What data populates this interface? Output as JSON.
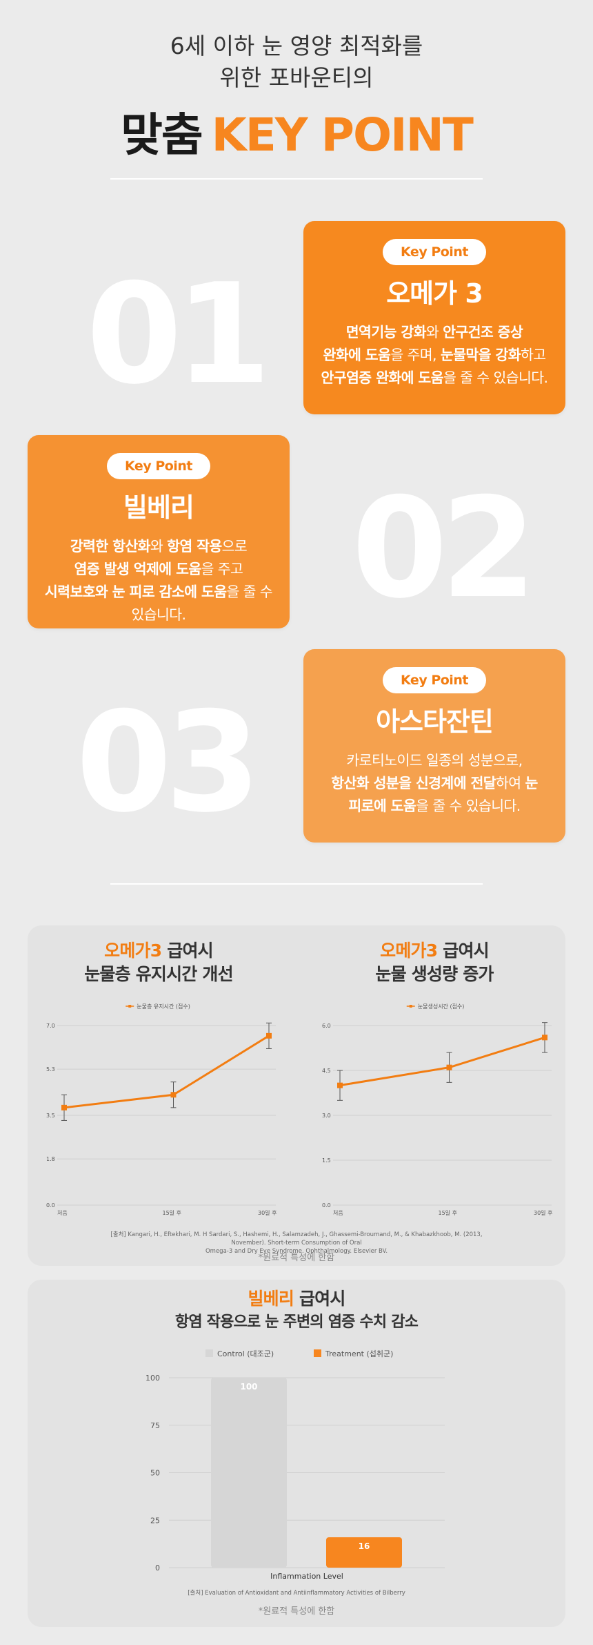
{
  "header": {
    "line1": "6세 이하 눈 영양 최적화를",
    "line2": "위한 포바운티의",
    "title_black": "맞춤",
    "title_orange": "KEY POINT"
  },
  "points": [
    {
      "number": "01",
      "pill": "Key Point",
      "title": "오메가 3",
      "body": [
        [
          {
            "t": "면역기능 강화",
            "b": true
          },
          {
            "t": "와 ",
            "b": false
          },
          {
            "t": "안구건조 증상",
            "b": true
          }
        ],
        [
          {
            "t": "완화에 도움",
            "b": true
          },
          {
            "t": "을 주며, ",
            "b": false
          },
          {
            "t": "눈물막을 강화",
            "b": true
          },
          {
            "t": "하고",
            "b": false
          }
        ],
        [
          {
            "t": "안구염증 완화에 도움",
            "b": true
          },
          {
            "t": "을 줄 수 있습니다.",
            "b": false
          }
        ]
      ]
    },
    {
      "number": "02",
      "pill": "Key Point",
      "title": "빌베리",
      "body": [
        [
          {
            "t": "강력한 항산화",
            "b": true
          },
          {
            "t": "와 ",
            "b": false
          },
          {
            "t": "항염 작용",
            "b": true
          },
          {
            "t": "으로",
            "b": false
          }
        ],
        [
          {
            "t": "염증 발생 억제에 도움",
            "b": true
          },
          {
            "t": "을 주고",
            "b": false
          }
        ],
        [
          {
            "t": "시력보호와 눈 피로 감소에 도움",
            "b": true
          },
          {
            "t": "을 줄 수",
            "b": false
          }
        ],
        [
          {
            "t": "있습니다.",
            "b": false
          }
        ]
      ]
    },
    {
      "number": "03",
      "pill": "Key Point",
      "title": "아스타잔틴",
      "body": [
        [
          {
            "t": "카로티노이드 일종의 성분으로,",
            "b": false
          }
        ],
        [
          {
            "t": "항산화 성분을 신경계에 전달",
            "b": true
          },
          {
            "t": "하여 ",
            "b": false
          },
          {
            "t": "눈",
            "b": true
          }
        ],
        [
          {
            "t": "피로에 도움",
            "b": true
          },
          {
            "t": "을 줄 수 있습니다.",
            "b": false
          }
        ]
      ]
    }
  ],
  "charts_panel": {
    "chart1_title_hl": "오메가3",
    "chart1_title_rest": " 급여시",
    "chart1_title_line2": "눈물층 유지시간 개선",
    "chart2_title_hl": "오메가3",
    "chart2_title_rest": " 급여시",
    "chart2_title_line2": "눈물 생성량 증가",
    "citation_line1": "[출처] Kangari, H., Eftekhari, M. H Sardari, S., Hashemi, H., Salamzadeh, J., Ghassemi-Broumand, M., & Khabazkhoob, M. (2013, November). Short-term Consumption of Oral",
    "citation_line2": "Omega-3 and Dry Eye Syndrome. Ophthalmology. Elsevier BV.",
    "note": "*원료적 특성에 한함"
  },
  "bilberry_panel": {
    "title_hl": "빌베리",
    "title_rest": " 급여시",
    "title_line2": "항염 작용으로 눈 주변의 염증 수치 감소",
    "citation": "[출처] Evaluation of Antioxidant and Antiinflammatory Activities of Bilberry",
    "note": "*원료적 특성에 한함"
  },
  "colors": {
    "orange": "#f7861f",
    "orange_dark": "#f27d12",
    "gray_bar": "#d6d6d6",
    "background": "#ebebeb"
  },
  "chart_data": [
    {
      "type": "line",
      "title": "",
      "legend": [
        "눈물층 유지시간 (점수)"
      ],
      "x": [
        "처음",
        "15일 후",
        "30일 후"
      ],
      "series": [
        {
          "name": "눈물층 유지시간 (점수)",
          "values": [
            3.8,
            4.3,
            6.6
          ],
          "error": [
            0.5,
            0.5,
            0.5
          ]
        }
      ],
      "yticks": [
        0.0,
        1.8,
        3.5,
        5.3,
        7.0
      ],
      "ytick_labels": [
        "0.0",
        "1.8",
        "3.5",
        "5.3",
        "7.0"
      ],
      "ylim": [
        0,
        7.0
      ],
      "grid": true
    },
    {
      "type": "line",
      "title": "",
      "legend": [
        "눈물생성시간 (점수)"
      ],
      "x": [
        "처음",
        "15일 후",
        "30일 후"
      ],
      "series": [
        {
          "name": "눈물생성시간 (점수)",
          "values": [
            4.0,
            4.6,
            5.6
          ],
          "error": [
            0.5,
            0.5,
            0.5
          ]
        }
      ],
      "yticks": [
        0.0,
        1.5,
        3.0,
        4.5,
        6.0
      ],
      "ytick_labels": [
        "0.0",
        "1.5",
        "3.0",
        "4.5",
        "6.0"
      ],
      "ylim": [
        0,
        6.0
      ],
      "grid": true
    },
    {
      "type": "bar",
      "title": "",
      "categories": [
        "Inflammation Level"
      ],
      "xlabel": "Inflammation Level",
      "series": [
        {
          "name": "Control (대조군)",
          "values": [
            100
          ]
        },
        {
          "name": "Treatment (섭취군)",
          "values": [
            16
          ]
        }
      ],
      "yticks": [
        0,
        25,
        50,
        75,
        100
      ],
      "ylim": [
        0,
        100
      ],
      "legend_position": "top",
      "grid": true
    }
  ]
}
